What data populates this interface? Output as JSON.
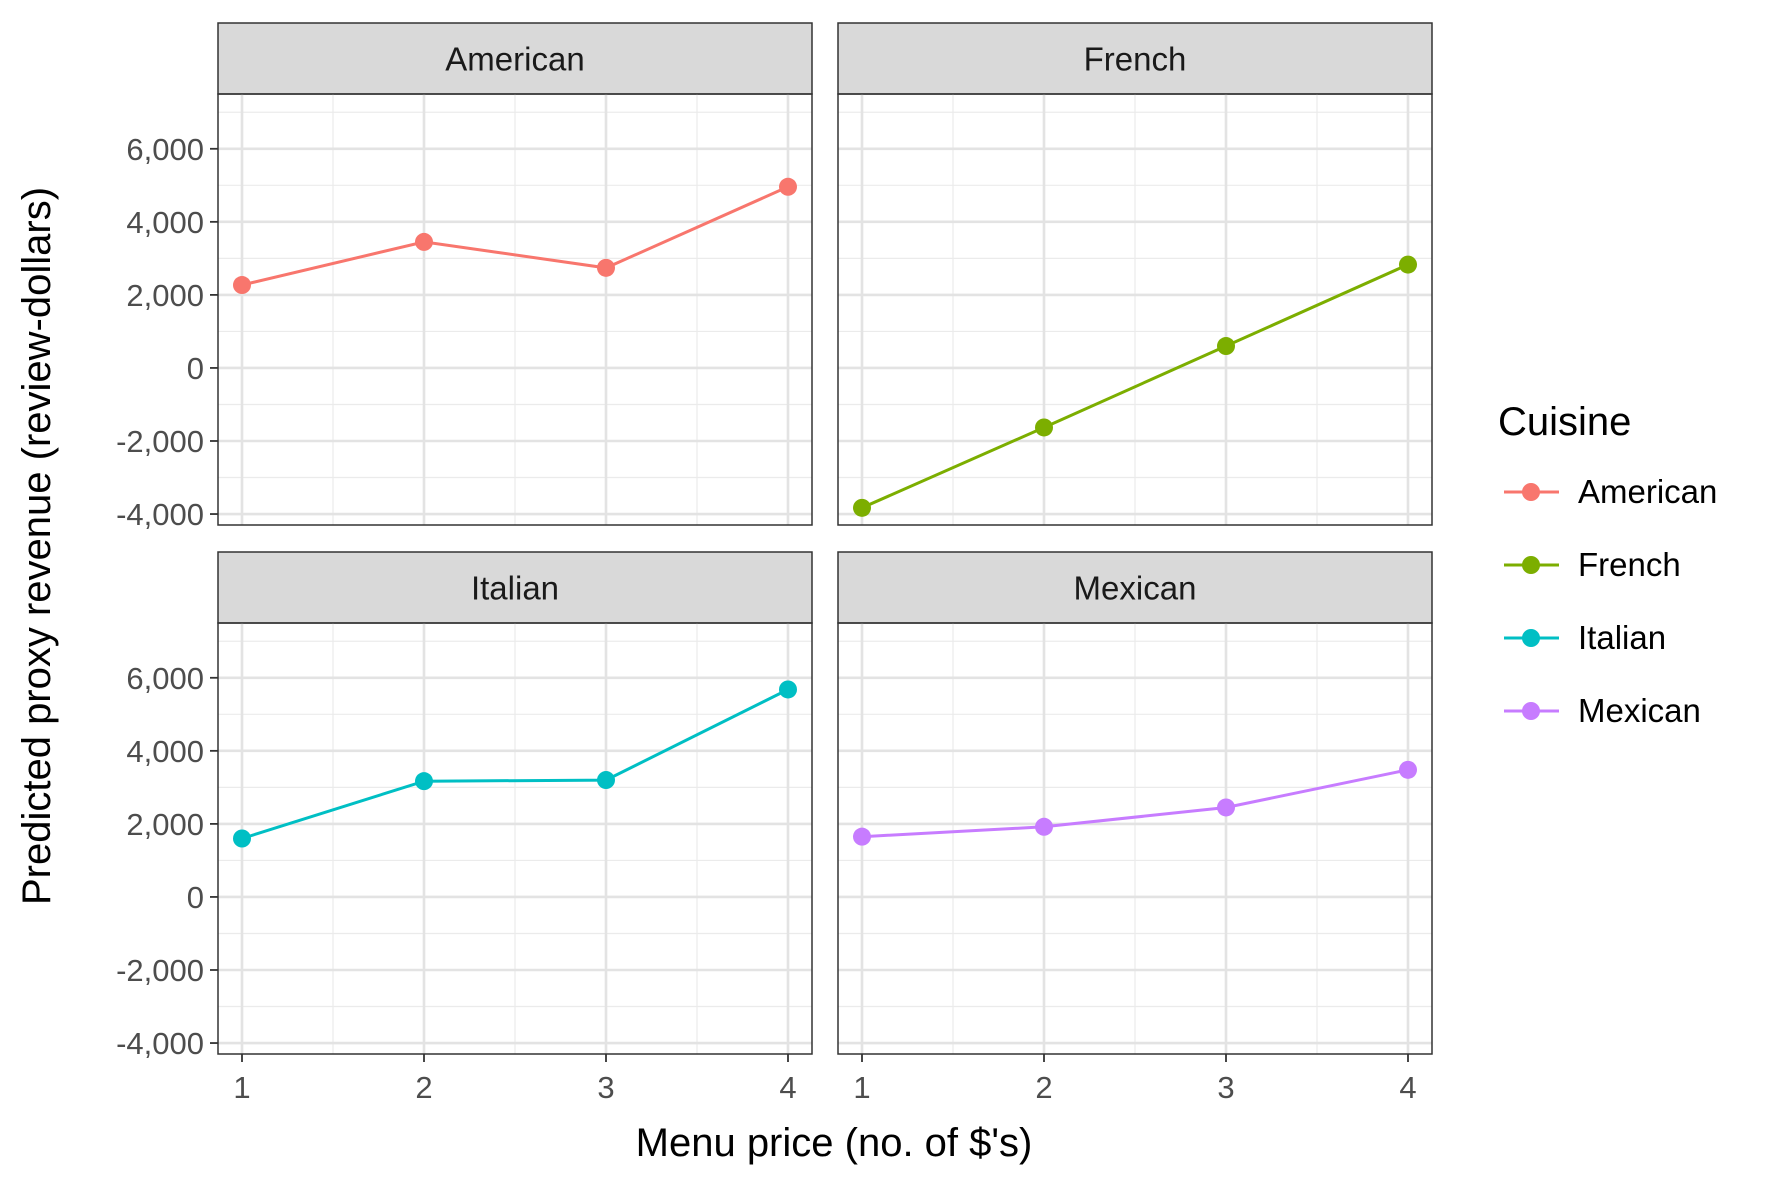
{
  "chart_data": {
    "type": "line",
    "facet_layout": "2x2",
    "xlabel": "Menu price (no. of $'s)",
    "ylabel": "Predicted proxy revenue (review-dollars)",
    "x": [
      1,
      2,
      3,
      4
    ],
    "x_ticks": [
      "1",
      "2",
      "3",
      "4"
    ],
    "ylim": [
      -4300,
      7500
    ],
    "y_ticks": [
      -4000,
      -2000,
      0,
      2000,
      4000,
      6000
    ],
    "y_tick_labels": [
      "-4,000",
      "-2,000",
      "0",
      "2,000",
      "4,000",
      "6,000"
    ],
    "grid": true,
    "legend": {
      "title": "Cuisine",
      "position": "right"
    },
    "series": [
      {
        "name": "American",
        "color": "#F8766D",
        "values": [
          2270,
          3450,
          2740,
          4960
        ]
      },
      {
        "name": "French",
        "color": "#7CAE00",
        "values": [
          -3830,
          -1630,
          600,
          2830
        ]
      },
      {
        "name": "Italian",
        "color": "#00BFC4",
        "values": [
          1600,
          3170,
          3200,
          5680
        ]
      },
      {
        "name": "Mexican",
        "color": "#C77CFF",
        "values": [
          1650,
          1920,
          2450,
          3480
        ]
      }
    ]
  }
}
